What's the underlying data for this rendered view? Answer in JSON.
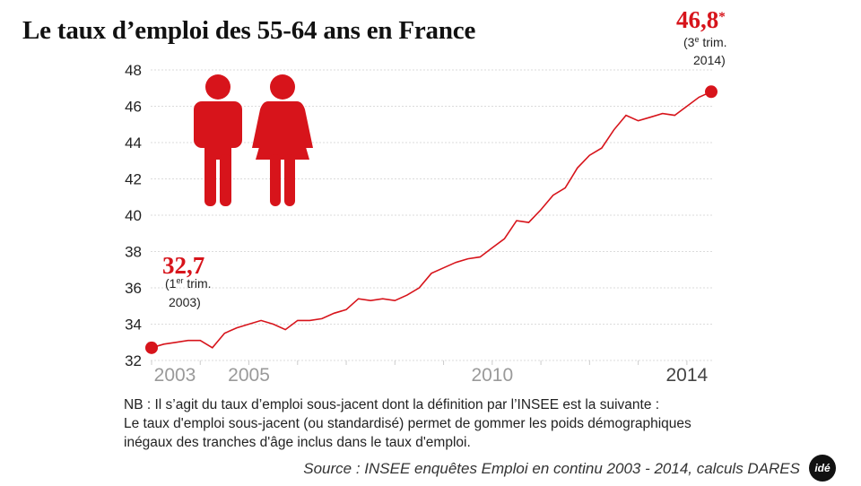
{
  "title": "Le taux d’emploi des 55-64 ans  en France",
  "colors": {
    "accent": "#d7141b",
    "grid": "#cfcfcf",
    "axis_label": "#9a9a9a"
  },
  "icons": [
    "man-icon",
    "woman-icon"
  ],
  "annotations": {
    "start": {
      "value": "32,7",
      "line1": "(1",
      "sup": "er",
      "line1b": " trim.",
      "line2": "2003)"
    },
    "end": {
      "value": "46,8",
      "star": "*",
      "line1": "(3",
      "sup": "e",
      "line1b": " trim.",
      "line2": "2014)"
    }
  },
  "note": {
    "line1": "NB : Il s’agit du taux d’emploi sous-jacent dont la définition par l’INSEE est la suivante :",
    "line2": "Le taux d'emploi sous-jacent (ou standardisé) permet de gommer les poids démographiques",
    "line3": "inégaux des tranches d'âge inclus dans le taux d'emploi."
  },
  "source": "Source : INSEE enquêtes Emploi en continu 2003 - 2014, calculs DARES",
  "logo_text": "idé",
  "chart_data": {
    "type": "line",
    "title": "Le taux d’emploi des 55-64 ans  en France",
    "xlabel": "",
    "ylabel": "",
    "ylim": [
      32,
      48
    ],
    "yticks": [
      "32",
      "34",
      "36",
      "38",
      "40",
      "42",
      "44",
      "46",
      "48"
    ],
    "xticks": [
      "2003",
      "2005",
      "2010",
      "2014"
    ],
    "grid": true,
    "x": [
      "2003-T1",
      "2003-T2",
      "2003-T3",
      "2003-T4",
      "2004-T1",
      "2004-T2",
      "2004-T3",
      "2004-T4",
      "2005-T1",
      "2005-T2",
      "2005-T3",
      "2005-T4",
      "2006-T1",
      "2006-T2",
      "2006-T3",
      "2006-T4",
      "2007-T1",
      "2007-T2",
      "2007-T3",
      "2007-T4",
      "2008-T1",
      "2008-T2",
      "2008-T3",
      "2008-T4",
      "2009-T1",
      "2009-T2",
      "2009-T3",
      "2009-T4",
      "2010-T1",
      "2010-T2",
      "2010-T3",
      "2010-T4",
      "2011-T1",
      "2011-T2",
      "2011-T3",
      "2011-T4",
      "2012-T1",
      "2012-T2",
      "2012-T3",
      "2012-T4",
      "2013-T1",
      "2013-T2",
      "2013-T3",
      "2013-T4",
      "2014-T1",
      "2014-T2",
      "2014-T3"
    ],
    "series": [
      {
        "values": [
          32.7,
          32.9,
          33.0,
          33.1,
          33.1,
          32.7,
          33.5,
          33.8,
          34.0,
          34.2,
          34.0,
          33.7,
          34.2,
          34.2,
          34.3,
          34.6,
          34.8,
          35.4,
          35.3,
          35.4,
          35.3,
          35.6,
          36.0,
          36.8,
          37.1,
          37.4,
          37.6,
          37.7,
          38.2,
          38.7,
          39.7,
          39.6,
          40.3,
          41.1,
          41.5,
          42.6,
          43.3,
          43.7,
          44.7,
          45.5,
          45.2,
          45.4,
          45.6,
          45.5,
          46.0,
          46.5,
          46.8
        ]
      }
    ]
  }
}
